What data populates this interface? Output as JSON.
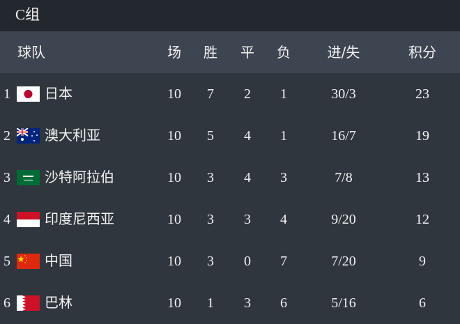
{
  "group_title": "C组",
  "headers": {
    "team": "球队",
    "played": "场",
    "won": "胜",
    "drawn": "平",
    "lost": "负",
    "goals": "进/失",
    "points": "积分"
  },
  "rows": [
    {
      "rank": "1",
      "team": "日本",
      "flag": "japan-flag",
      "played": "10",
      "won": "7",
      "drawn": "2",
      "lost": "1",
      "goals": "30/3",
      "points": "23"
    },
    {
      "rank": "2",
      "team": "澳大利亚",
      "flag": "australia-flag",
      "played": "10",
      "won": "5",
      "drawn": "4",
      "lost": "1",
      "goals": "16/7",
      "points": "19"
    },
    {
      "rank": "3",
      "team": "沙特阿拉伯",
      "flag": "saudi-arabia-flag",
      "played": "10",
      "won": "3",
      "drawn": "4",
      "lost": "3",
      "goals": "7/8",
      "points": "13"
    },
    {
      "rank": "4",
      "team": "印度尼西亚",
      "flag": "indonesia-flag",
      "played": "10",
      "won": "3",
      "drawn": "3",
      "lost": "4",
      "goals": "9/20",
      "points": "12"
    },
    {
      "rank": "5",
      "team": "中国",
      "flag": "china-flag",
      "played": "10",
      "won": "3",
      "drawn": "0",
      "lost": "7",
      "goals": "7/20",
      "points": "9"
    },
    {
      "rank": "6",
      "team": "巴林",
      "flag": "bahrain-flag",
      "played": "10",
      "won": "1",
      "drawn": "3",
      "lost": "6",
      "goals": "5/16",
      "points": "6"
    }
  ]
}
